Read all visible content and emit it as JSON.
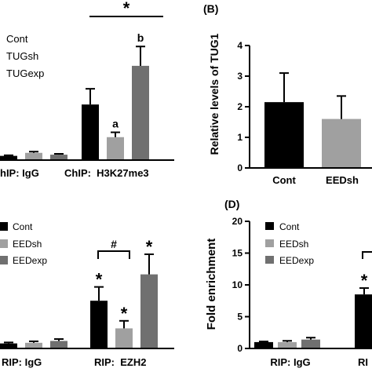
{
  "colors": {
    "cont": "#000000",
    "sh": "#a0a0a0",
    "exp": "#707070"
  },
  "chart_data": [
    {
      "type": "bar",
      "panel": "A",
      "legend": [
        "Cont",
        "TUGsh",
        "TUGexp"
      ],
      "legend_placement": "top-left",
      "groups": [
        {
          "label": "hIP: IgG",
          "values": [
            0.35,
            0.6,
            0.45
          ],
          "errors": [
            0.05,
            0.1,
            0.07
          ],
          "annotations": [
            "",
            "",
            ""
          ]
        },
        {
          "label": "ChIP:  H3K27me3",
          "values": [
            4.6,
            1.9,
            7.8
          ],
          "errors": [
            1.3,
            0.4,
            1.6
          ],
          "annotations": [
            "",
            "a",
            "b"
          ]
        }
      ],
      "significance": "*",
      "yaxis_shown": false
    },
    {
      "type": "bar",
      "panel": "B",
      "panel_label": "(B)",
      "ylabel": "Relative levels of TUG1",
      "categories": [
        "Cont",
        "EEDsh"
      ],
      "values": [
        2.15,
        1.6
      ],
      "errors": [
        0.95,
        0.75
      ],
      "ylim": [
        0,
        4
      ],
      "yticks": [
        0,
        1,
        2,
        3,
        4
      ]
    },
    {
      "type": "bar",
      "panel": "C",
      "legend": [
        "Cont",
        "EEDsh",
        "EEDexp"
      ],
      "legend_placement": "top-left",
      "groups": [
        {
          "label": "RIP: IgG",
          "values": [
            0.4,
            0.45,
            0.6
          ],
          "errors": [
            0.08,
            0.12,
            0.15
          ],
          "annotations": [
            "",
            "",
            ""
          ]
        },
        {
          "label": "RIP:  EZH2",
          "values": [
            3.8,
            1.6,
            5.9
          ],
          "errors": [
            1.1,
            0.6,
            1.6
          ],
          "annotations": [
            "*",
            "*",
            "*"
          ]
        }
      ],
      "significance": "#",
      "yaxis_shown": false
    },
    {
      "type": "bar",
      "panel": "D",
      "panel_label": "(D)",
      "ylabel": "Fold enrichment",
      "legend": [
        "Cont",
        "EEDsh",
        "EEDexp"
      ],
      "legend_placement": "top-right",
      "groups": [
        {
          "label": "RIP: IgG",
          "values": [
            1.0,
            1.0,
            1.4
          ],
          "errors": [
            0.1,
            0.2,
            0.3
          ],
          "annotations": [
            "",
            "",
            ""
          ]
        },
        {
          "label": "RI",
          "values": [
            8.5,
            null,
            null
          ],
          "errors": [
            1.0,
            null,
            null
          ],
          "annotations": [
            "*",
            "",
            ""
          ]
        }
      ],
      "ylim": [
        0,
        20
      ],
      "yticks": [
        0,
        5,
        10,
        15,
        20
      ]
    }
  ]
}
